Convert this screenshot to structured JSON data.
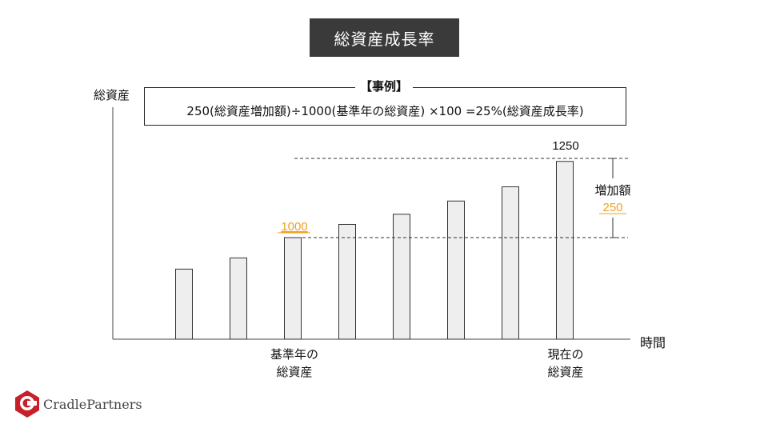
{
  "title": "総資産成長率",
  "y_axis_label": "総資産",
  "x_axis_label": "時間",
  "example": {
    "title": "【事例】",
    "formula": "250(総資産増加額)÷1000(基準年の総資産) ×100 =25%(総資産成長率)"
  },
  "annotations": {
    "base_value": "1000",
    "current_value": "1250",
    "increase_label": "増加額",
    "increase_value": "250"
  },
  "category_labels": {
    "base_year": [
      "基準年の",
      "総資産"
    ],
    "current": [
      "現在の",
      "総資産"
    ]
  },
  "colors": {
    "title_bg": "#3a3a3a",
    "highlight": "#f0a020",
    "bar_fill": "#eeeeee"
  },
  "logo": {
    "text": "CradlePartners"
  },
  "chart_data": {
    "type": "bar",
    "values": [
      690,
      800,
      1000,
      1130,
      1230,
      1360,
      1500,
      1750
    ],
    "annotated_values": {
      "base": 1000,
      "current": 1250,
      "increase": 250
    },
    "xlabel": "時間",
    "ylabel": "総資産"
  }
}
